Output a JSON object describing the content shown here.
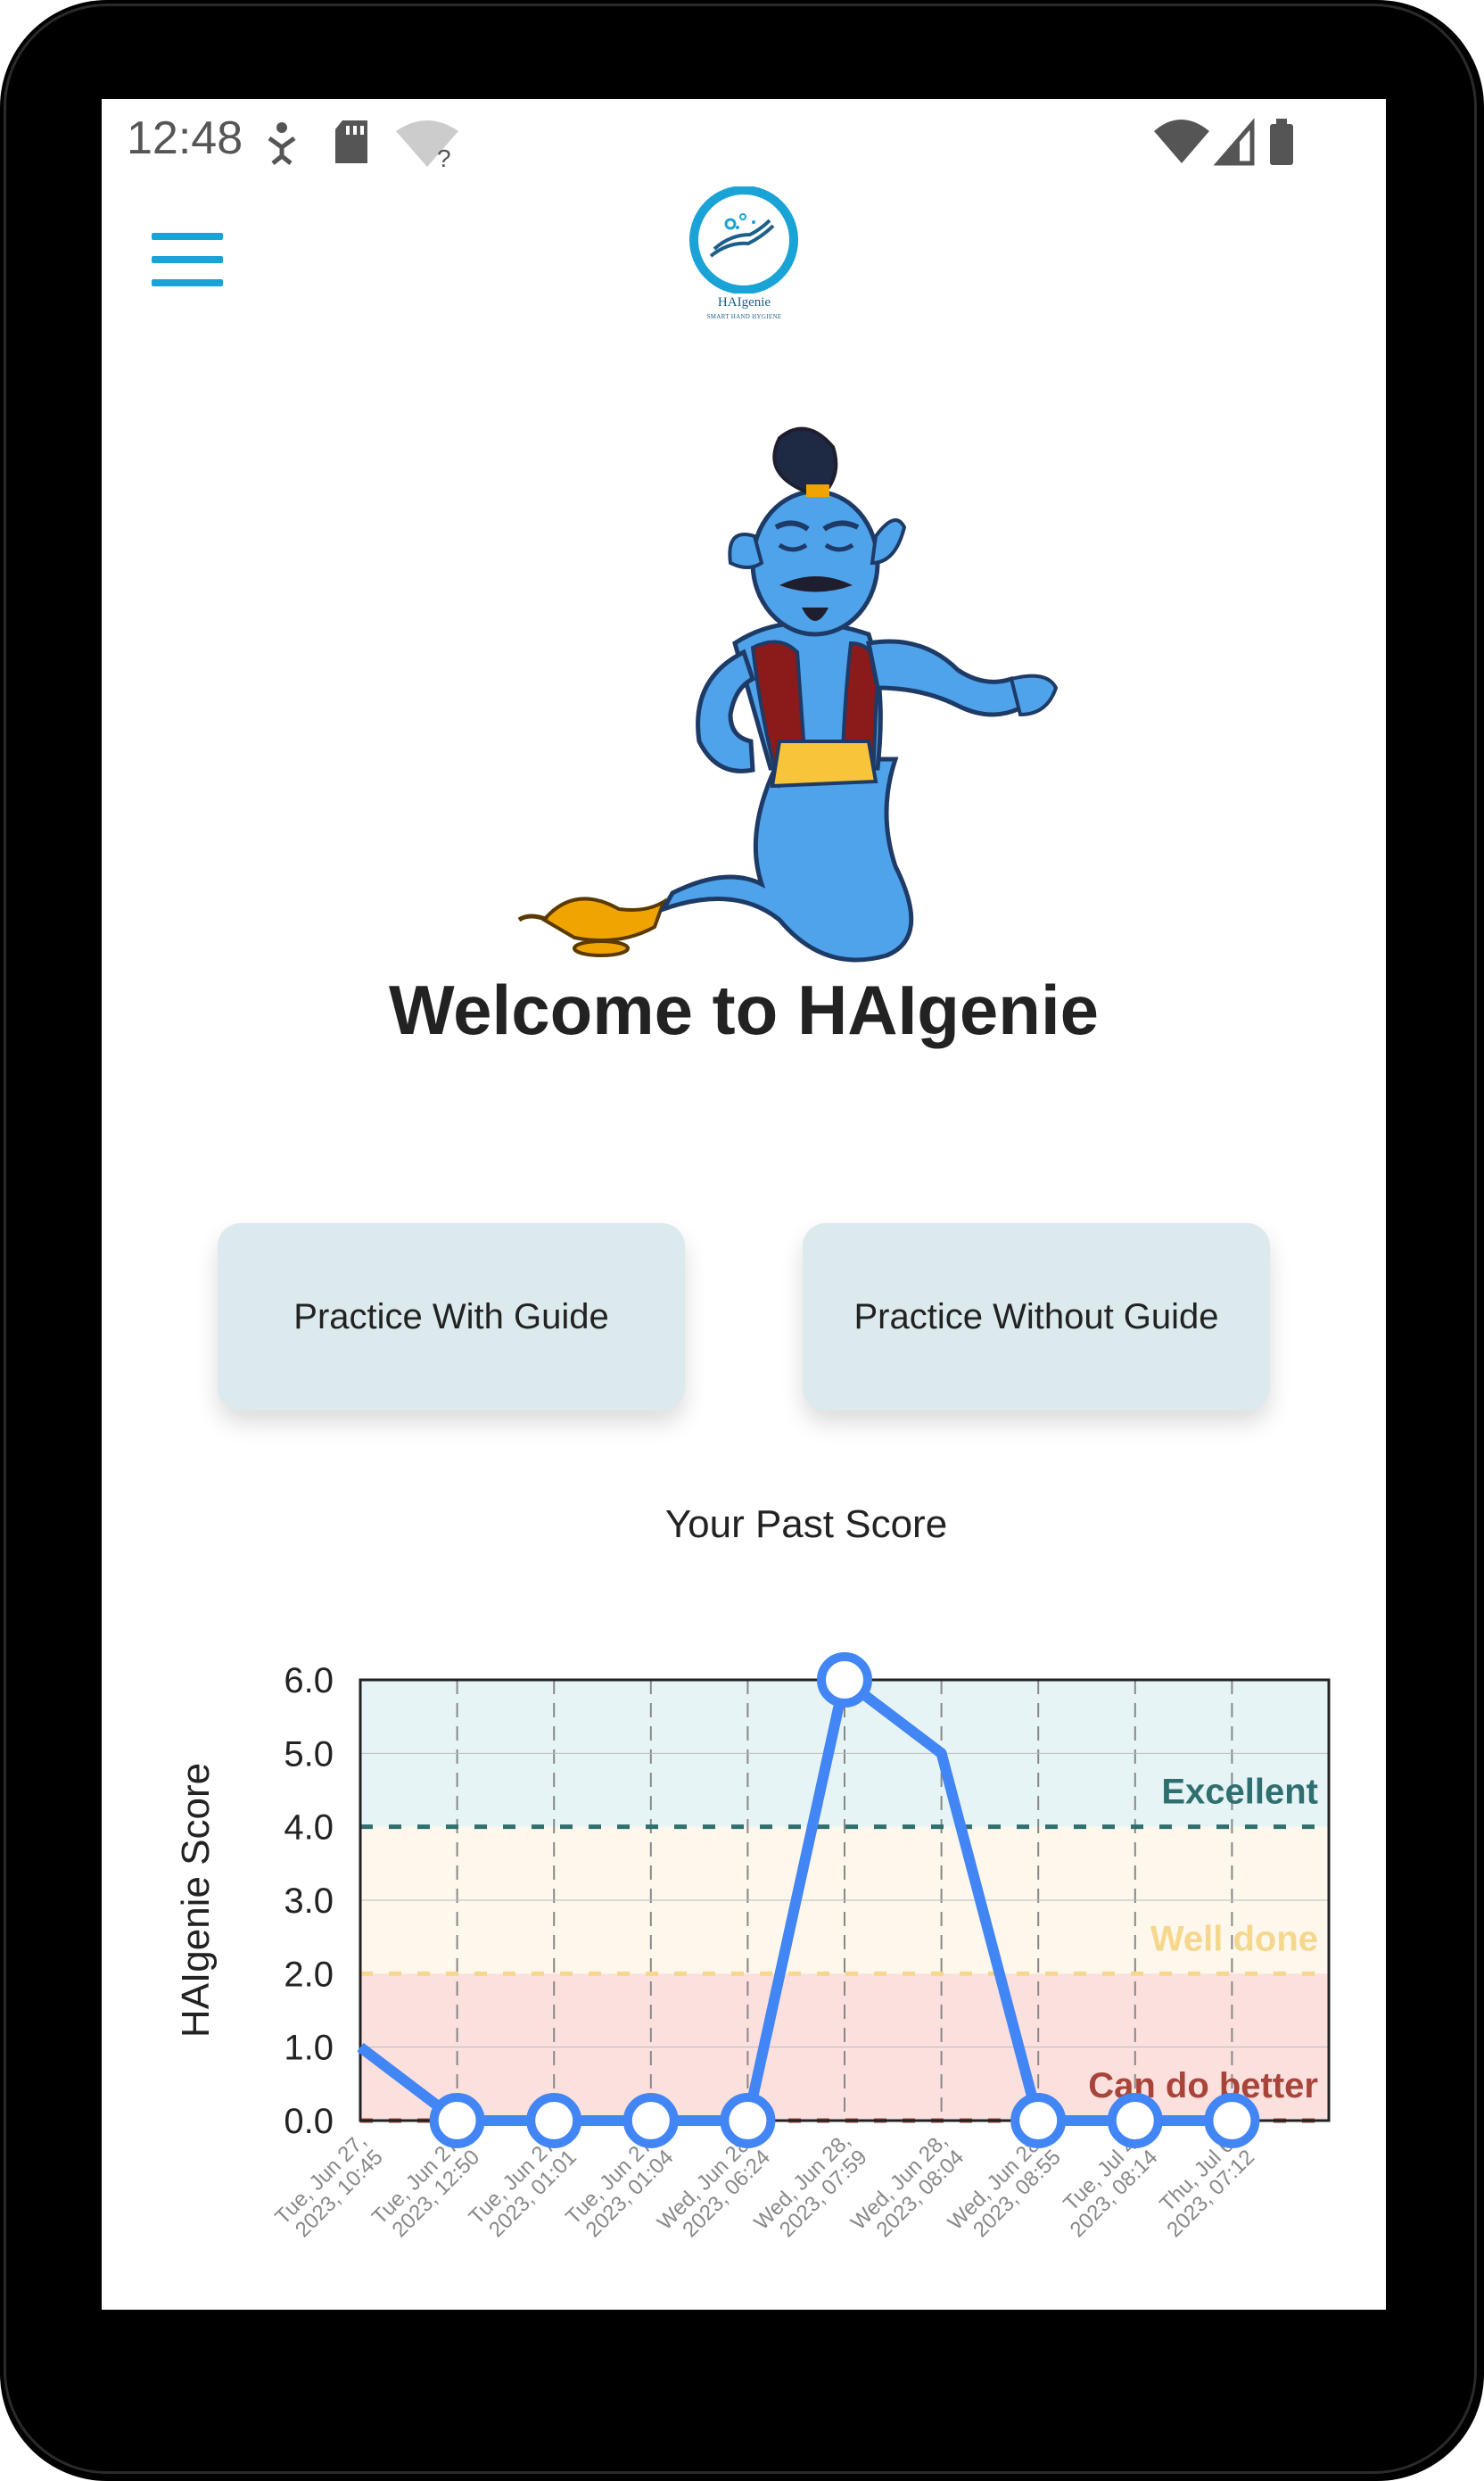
{
  "status_bar": {
    "time": "12:48",
    "left_icons": [
      "accessibility-icon",
      "sd-card-icon",
      "wifi-question-icon"
    ],
    "right_icons": [
      "wifi-icon",
      "signal-icon",
      "battery-icon"
    ]
  },
  "header": {
    "menu_icon": "hamburger-menu-icon",
    "logo_name": "HAIgenie",
    "logo_tagline": "SMART HAND HYGIENE"
  },
  "welcome": {
    "title": "Welcome to HAIgenie"
  },
  "buttons": {
    "practice_with_guide": "Practice With Guide",
    "practice_without_guide": "Practice Without Guide"
  },
  "colors": {
    "accent": "#1aa3d6",
    "button_bg": "#dce9ed",
    "line": "#4285f4",
    "excellent": "#2f6f6f",
    "well_done": "#f5d78e",
    "can_do_better": "#a8443a"
  },
  "chart_data": {
    "type": "line",
    "title": "Your Past Score",
    "ylabel": "HAIgenie Score",
    "xlabel": "",
    "ylim": [
      0,
      6
    ],
    "yticks": [
      "0.0",
      "1.0",
      "2.0",
      "3.0",
      "4.0",
      "5.0",
      "6.0"
    ],
    "grid": true,
    "x": [
      "Tue, Jun 27, 2023, 10:45",
      "Tue, Jun 27, 2023, 12:50",
      "Tue, Jun 27, 2023, 01:01",
      "Tue, Jun 27, 2023, 01:04",
      "Wed, Jun 28, 2023, 06:24",
      "Wed, Jun 28, 2023, 07:59",
      "Wed, Jun 28, 2023, 08:04",
      "Wed, Jun 28, 2023, 08:55",
      "Tue, Jul 4, 2023, 08:14",
      "Thu, Jul 6, 2023, 07:12"
    ],
    "x_labels": [
      [
        "Tue, Jun 27,",
        "2023, 10:45"
      ],
      [
        "Tue, Jun 27,",
        "2023, 12:50"
      ],
      [
        "Tue, Jun 27,",
        "2023, 01:01"
      ],
      [
        "Tue, Jun 27,",
        "2023, 01:04"
      ],
      [
        "Wed, Jun 28,",
        "2023, 06:24"
      ],
      [
        "Wed, Jun 28,",
        "2023, 07:59"
      ],
      [
        "Wed, Jun 28,",
        "2023, 08:04"
      ],
      [
        "Wed, Jun 28,",
        "2023, 08:55"
      ],
      [
        "Tue, Jul 4,",
        "2023, 08:14"
      ],
      [
        "Thu, Jul 6,",
        "2023, 07:12"
      ]
    ],
    "values": [
      1.0,
      0.0,
      0.0,
      0.0,
      0.0,
      6.0,
      5.0,
      0.0,
      0.0,
      0.0
    ],
    "markers": [
      false,
      true,
      true,
      true,
      true,
      true,
      false,
      true,
      true,
      true
    ],
    "bands": [
      {
        "label": "Excellent",
        "from": 4,
        "to": 6,
        "color": "#e6f4f6",
        "line_color": "#2f6f6f",
        "label_color": "#2f6f6f"
      },
      {
        "label": "Well done",
        "from": 2,
        "to": 4,
        "color": "#fdf7ec",
        "line_color": "#f5d78e",
        "label_color": "#f5d78e"
      },
      {
        "label": "Can do better",
        "from": 0,
        "to": 2,
        "color": "#fbe0de",
        "line_color": "#a8443a",
        "label_color": "#a8443a"
      }
    ]
  }
}
